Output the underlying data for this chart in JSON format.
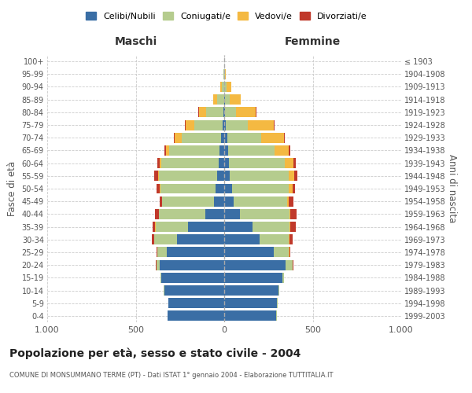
{
  "age_groups": [
    "0-4",
    "5-9",
    "10-14",
    "15-19",
    "20-24",
    "25-29",
    "30-34",
    "35-39",
    "40-44",
    "45-49",
    "50-54",
    "55-59",
    "60-64",
    "65-69",
    "70-74",
    "75-79",
    "80-84",
    "85-89",
    "90-94",
    "95-99",
    "100+"
  ],
  "birth_years": [
    "1999-2003",
    "1994-1998",
    "1989-1993",
    "1984-1988",
    "1979-1983",
    "1974-1978",
    "1969-1973",
    "1964-1968",
    "1959-1963",
    "1954-1958",
    "1949-1953",
    "1944-1948",
    "1939-1943",
    "1934-1938",
    "1929-1933",
    "1924-1928",
    "1919-1923",
    "1914-1918",
    "1909-1913",
    "1904-1908",
    "≤ 1903"
  ],
  "males": {
    "celibi": [
      320,
      315,
      340,
      355,
      365,
      325,
      265,
      205,
      105,
      58,
      48,
      38,
      32,
      28,
      18,
      8,
      4,
      2,
      1,
      0,
      0
    ],
    "coniugati": [
      2,
      2,
      2,
      4,
      18,
      52,
      130,
      182,
      262,
      292,
      312,
      332,
      322,
      282,
      222,
      162,
      100,
      40,
      14,
      4,
      1
    ],
    "vedovi": [
      0,
      0,
      0,
      0,
      0,
      1,
      1,
      2,
      2,
      3,
      4,
      5,
      10,
      20,
      40,
      50,
      40,
      20,
      8,
      2,
      0
    ],
    "divorziati": [
      0,
      0,
      0,
      1,
      2,
      5,
      12,
      15,
      20,
      12,
      18,
      20,
      15,
      10,
      5,
      3,
      2,
      1,
      0,
      0,
      0
    ]
  },
  "females": {
    "nubili": [
      295,
      298,
      308,
      328,
      348,
      278,
      198,
      158,
      88,
      53,
      43,
      33,
      28,
      23,
      16,
      10,
      6,
      4,
      2,
      1,
      0
    ],
    "coniugate": [
      2,
      2,
      4,
      8,
      38,
      88,
      168,
      212,
      282,
      302,
      322,
      332,
      312,
      262,
      192,
      122,
      62,
      26,
      10,
      3,
      1
    ],
    "vedove": [
      0,
      0,
      0,
      0,
      1,
      1,
      2,
      3,
      5,
      10,
      20,
      30,
      50,
      80,
      130,
      150,
      110,
      62,
      26,
      5,
      1
    ],
    "divorziate": [
      0,
      0,
      0,
      1,
      3,
      8,
      20,
      30,
      35,
      25,
      16,
      18,
      15,
      10,
      5,
      4,
      2,
      1,
      0,
      0,
      0
    ]
  },
  "colors": {
    "celibi_nubili": "#3a6ea5",
    "coniugati": "#b5cc8e",
    "vedovi": "#f4b942",
    "divorziati": "#c0392b"
  },
  "title": "Popolazione per età, sesso e stato civile - 2004",
  "subtitle": "COMUNE DI MONSUMMANO TERME (PT) - Dati ISTAT 1° gennaio 2004 - Elaborazione TUTTITALIA.IT",
  "xlabel_left": "Maschi",
  "xlabel_right": "Femmine",
  "ylabel_left": "Fasce di età",
  "ylabel_right": "Anni di nascita",
  "xlim": 1000,
  "background_color": "#ffffff"
}
